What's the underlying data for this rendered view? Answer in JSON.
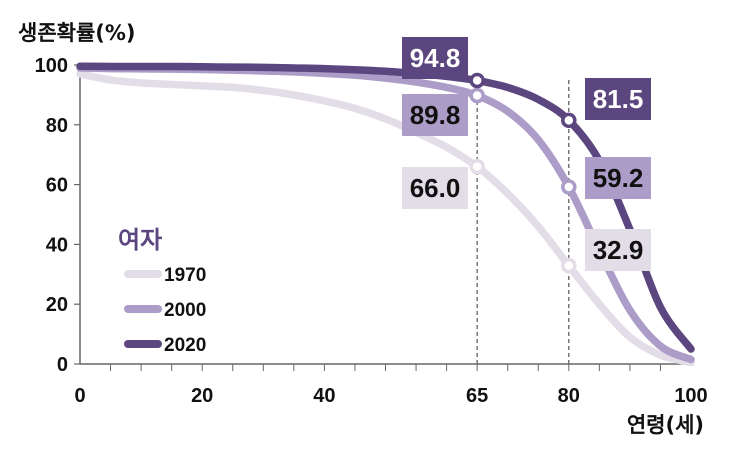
{
  "chart_data": {
    "type": "line",
    "ylabel": "생존확률(%)",
    "xlabel": "연령(세)",
    "xlim": [
      0,
      100
    ],
    "ylim": [
      0,
      100
    ],
    "x_ticks": [
      "0",
      "20",
      "40",
      "65",
      "80",
      "100"
    ],
    "y_ticks": [
      "0",
      "20",
      "40",
      "60",
      "80",
      "100"
    ],
    "legend_title": "여자",
    "legend_position": "bottom-left",
    "reference_lines_x": [
      65,
      80
    ],
    "series": [
      {
        "name": "1970",
        "color": "#e3dde8",
        "points": [
          [
            0,
            97
          ],
          [
            5,
            95
          ],
          [
            10,
            94
          ],
          [
            15,
            93.5
          ],
          [
            20,
            93
          ],
          [
            25,
            92.5
          ],
          [
            30,
            91.5
          ],
          [
            35,
            90
          ],
          [
            40,
            88
          ],
          [
            45,
            85.5
          ],
          [
            50,
            82
          ],
          [
            55,
            77.5
          ],
          [
            60,
            72.5
          ],
          [
            65,
            66
          ],
          [
            70,
            57
          ],
          [
            75,
            46
          ],
          [
            80,
            32.9
          ],
          [
            85,
            20
          ],
          [
            90,
            9
          ],
          [
            95,
            3
          ],
          [
            100,
            0.5
          ]
        ],
        "highlight": {
          "x": 65,
          "y": 66.0,
          "label": "66.0"
        },
        "highlight2": {
          "x": 80,
          "y": 32.9,
          "label": "32.9"
        }
      },
      {
        "name": "2000",
        "color": "#ac9cc8",
        "points": [
          [
            0,
            99
          ],
          [
            5,
            98.8
          ],
          [
            10,
            98.7
          ],
          [
            15,
            98.6
          ],
          [
            20,
            98.5
          ],
          [
            25,
            98.3
          ],
          [
            30,
            98
          ],
          [
            35,
            97.7
          ],
          [
            40,
            97.2
          ],
          [
            45,
            96.6
          ],
          [
            50,
            95.6
          ],
          [
            55,
            94.3
          ],
          [
            60,
            92.5
          ],
          [
            65,
            89.8
          ],
          [
            70,
            84.5
          ],
          [
            75,
            75
          ],
          [
            80,
            59.2
          ],
          [
            85,
            38
          ],
          [
            90,
            18
          ],
          [
            95,
            6
          ],
          [
            100,
            1.5
          ]
        ],
        "highlight": {
          "x": 65,
          "y": 89.8,
          "label": "89.8"
        },
        "highlight2": {
          "x": 80,
          "y": 59.2,
          "label": "59.2"
        }
      },
      {
        "name": "2020",
        "color": "#5c4680",
        "points": [
          [
            0,
            99.6
          ],
          [
            5,
            99.5
          ],
          [
            10,
            99.5
          ],
          [
            15,
            99.5
          ],
          [
            20,
            99.4
          ],
          [
            25,
            99.3
          ],
          [
            30,
            99.2
          ],
          [
            35,
            99
          ],
          [
            40,
            98.8
          ],
          [
            45,
            98.4
          ],
          [
            50,
            97.9
          ],
          [
            55,
            97.1
          ],
          [
            60,
            96.2
          ],
          [
            65,
            94.8
          ],
          [
            70,
            92.5
          ],
          [
            75,
            88.5
          ],
          [
            80,
            81.5
          ],
          [
            85,
            68
          ],
          [
            90,
            45
          ],
          [
            95,
            19
          ],
          [
            100,
            5
          ]
        ],
        "highlight": {
          "x": 65,
          "y": 94.8,
          "label": "94.8"
        },
        "highlight2": {
          "x": 80,
          "y": 81.5,
          "label": "81.5"
        }
      }
    ]
  }
}
